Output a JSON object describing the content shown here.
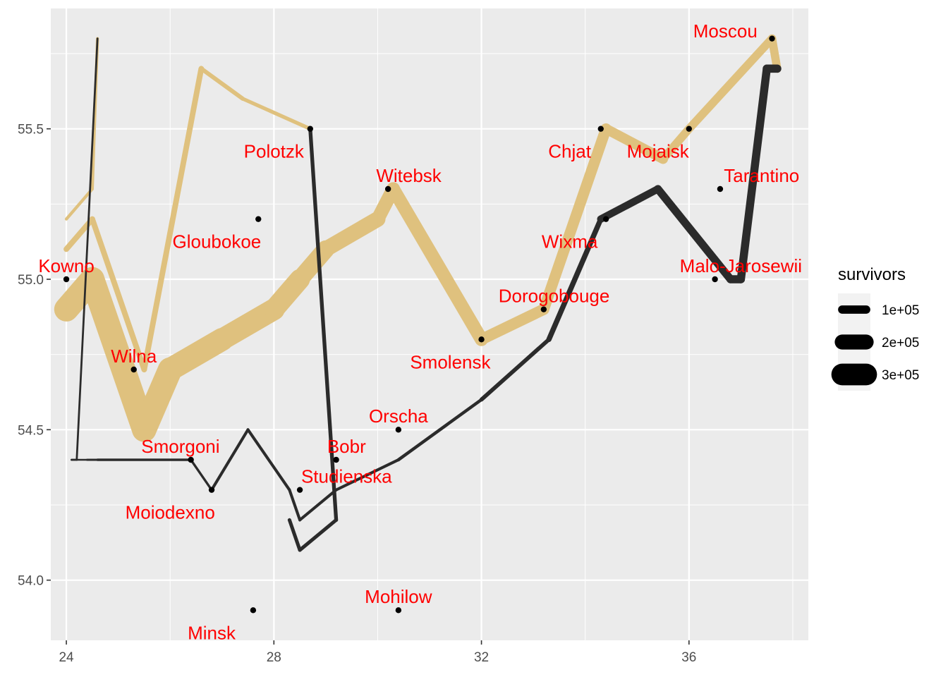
{
  "chart_data": {
    "type": "line",
    "title": "",
    "xlabel": "",
    "ylabel": "",
    "xlim": [
      23.7,
      38.3
    ],
    "ylim": [
      53.8,
      55.9
    ],
    "x_ticks": [
      24,
      28,
      32,
      36
    ],
    "y_ticks": [
      54.0,
      54.5,
      55.0,
      55.5
    ],
    "x_tick_labels": [
      "24",
      "28",
      "32",
      "36"
    ],
    "y_tick_labels": [
      "54.0",
      "54.5",
      "55.0",
      "55.5"
    ],
    "grid": true,
    "background": "#ebebeb",
    "colors": {
      "advance": "#dfc17e",
      "retreat": "#2b2b2b",
      "city_label": "#ff0000",
      "city_point": "#000000"
    },
    "legend": {
      "title": "survivors",
      "position": "right",
      "entries": [
        {
          "label": "1e+05",
          "value": 100000
        },
        {
          "label": "2e+05",
          "value": 200000
        },
        {
          "label": "3e+05",
          "value": 300000
        }
      ]
    },
    "troops": [
      {
        "group": 1,
        "direction": "A",
        "points": [
          {
            "x": 24.0,
            "y": 54.9,
            "survivors": 340000
          },
          {
            "x": 24.5,
            "y": 55.0,
            "survivors": 340000
          },
          {
            "x": 25.5,
            "y": 54.5,
            "survivors": 340000
          },
          {
            "x": 26.0,
            "y": 54.7,
            "survivors": 320000
          },
          {
            "x": 27.0,
            "y": 54.8,
            "survivors": 300000
          },
          {
            "x": 28.0,
            "y": 54.9,
            "survivors": 280000
          },
          {
            "x": 28.5,
            "y": 55.0,
            "survivors": 240000
          },
          {
            "x": 29.0,
            "y": 55.1,
            "survivors": 210000
          },
          {
            "x": 30.0,
            "y": 55.2,
            "survivors": 180000
          },
          {
            "x": 30.3,
            "y": 55.3,
            "survivors": 175000
          },
          {
            "x": 32.0,
            "y": 54.8,
            "survivors": 145000
          },
          {
            "x": 33.2,
            "y": 54.9,
            "survivors": 140000
          },
          {
            "x": 34.4,
            "y": 55.5,
            "survivors": 127100
          },
          {
            "x": 35.5,
            "y": 55.4,
            "survivors": 100000
          },
          {
            "x": 36.0,
            "y": 55.5,
            "survivors": 100000
          },
          {
            "x": 37.6,
            "y": 55.8,
            "survivors": 100000
          },
          {
            "x": 37.7,
            "y": 55.7,
            "survivors": 100000
          }
        ]
      },
      {
        "group": 1,
        "direction": "R",
        "points": [
          {
            "x": 37.7,
            "y": 55.7,
            "survivors": 100000
          },
          {
            "x": 37.5,
            "y": 55.7,
            "survivors": 98000
          },
          {
            "x": 37.0,
            "y": 55.0,
            "survivors": 97000
          },
          {
            "x": 36.8,
            "y": 55.0,
            "survivors": 96000
          },
          {
            "x": 35.4,
            "y": 55.3,
            "survivors": 87000
          },
          {
            "x": 34.3,
            "y": 55.2,
            "survivors": 55000
          },
          {
            "x": 33.3,
            "y": 54.8,
            "survivors": 37000
          },
          {
            "x": 32.0,
            "y": 54.6,
            "survivors": 24000
          },
          {
            "x": 30.4,
            "y": 54.4,
            "survivors": 20000
          },
          {
            "x": 29.2,
            "y": 54.3,
            "survivors": 20000
          },
          {
            "x": 28.5,
            "y": 54.2,
            "survivors": 20000
          },
          {
            "x": 28.3,
            "y": 54.3,
            "survivors": 20000
          },
          {
            "x": 27.5,
            "y": 54.5,
            "survivors": 20000
          },
          {
            "x": 26.8,
            "y": 54.3,
            "survivors": 12000
          },
          {
            "x": 26.4,
            "y": 54.4,
            "survivors": 14000
          },
          {
            "x": 24.6,
            "y": 54.4,
            "survivors": 8000
          },
          {
            "x": 24.4,
            "y": 54.4,
            "survivors": 4000
          },
          {
            "x": 24.2,
            "y": 54.4,
            "survivors": 4000
          },
          {
            "x": 24.1,
            "y": 54.4,
            "survivors": 4000
          }
        ]
      },
      {
        "group": 2,
        "direction": "A",
        "points": [
          {
            "x": 24.0,
            "y": 55.1,
            "survivors": 60000
          },
          {
            "x": 24.5,
            "y": 55.2,
            "survivors": 60000
          },
          {
            "x": 25.5,
            "y": 54.7,
            "survivors": 60000
          },
          {
            "x": 26.6,
            "y": 55.7,
            "survivors": 40000
          },
          {
            "x": 27.4,
            "y": 55.6,
            "survivors": 33000
          },
          {
            "x": 28.7,
            "y": 55.5,
            "survivors": 33000
          }
        ]
      },
      {
        "group": 2,
        "direction": "R",
        "points": [
          {
            "x": 28.7,
            "y": 55.5,
            "survivors": 33000
          },
          {
            "x": 29.2,
            "y": 54.2,
            "survivors": 30000
          },
          {
            "x": 28.5,
            "y": 54.1,
            "survivors": 30000
          },
          {
            "x": 28.3,
            "y": 54.2,
            "survivors": 28000
          }
        ]
      },
      {
        "group": 3,
        "direction": "A",
        "points": [
          {
            "x": 24.0,
            "y": 55.2,
            "survivors": 22000
          },
          {
            "x": 24.5,
            "y": 55.3,
            "survivors": 22000
          },
          {
            "x": 24.6,
            "y": 55.8,
            "survivors": 6000
          }
        ]
      },
      {
        "group": 3,
        "direction": "R",
        "points": [
          {
            "x": 24.6,
            "y": 55.8,
            "survivors": 6000
          },
          {
            "x": 24.2,
            "y": 54.4,
            "survivors": 6000
          },
          {
            "x": 24.1,
            "y": 54.4,
            "survivors": 6000
          }
        ]
      }
    ],
    "cities": [
      {
        "name": "Kowno",
        "lon": 24.0,
        "lat": 55.0,
        "lx": 24.0,
        "ly": 55.045
      },
      {
        "name": "Wilna",
        "lon": 25.3,
        "lat": 54.7,
        "lx": 25.3,
        "ly": 54.745
      },
      {
        "name": "Smorgoni",
        "lon": 26.4,
        "lat": 54.4,
        "lx": 26.2,
        "ly": 54.445
      },
      {
        "name": "Moiodexno",
        "lon": 26.8,
        "lat": 54.3,
        "lx": 26.0,
        "ly": 54.225
      },
      {
        "name": "Gloubokoe",
        "lon": 27.7,
        "lat": 55.2,
        "lx": 26.9,
        "ly": 55.125
      },
      {
        "name": "Minsk",
        "lon": 27.6,
        "lat": 53.9,
        "lx": 26.8,
        "ly": 53.825
      },
      {
        "name": "Studienska",
        "lon": 28.5,
        "lat": 54.3,
        "lx": 29.4,
        "ly": 54.345
      },
      {
        "name": "Polotzk",
        "lon": 28.7,
        "lat": 55.5,
        "lx": 28.0,
        "ly": 55.425
      },
      {
        "name": "Bobr",
        "lon": 29.2,
        "lat": 54.4,
        "lx": 29.4,
        "ly": 54.445
      },
      {
        "name": "Witebsk",
        "lon": 30.2,
        "lat": 55.3,
        "lx": 30.6,
        "ly": 55.345
      },
      {
        "name": "Orscha",
        "lon": 30.4,
        "lat": 54.5,
        "lx": 30.4,
        "ly": 54.545
      },
      {
        "name": "Mohilow",
        "lon": 30.4,
        "lat": 53.9,
        "lx": 30.4,
        "ly": 53.945
      },
      {
        "name": "Smolensk",
        "lon": 32.0,
        "lat": 54.8,
        "lx": 31.4,
        "ly": 54.725
      },
      {
        "name": "Dorogobouge",
        "lon": 33.2,
        "lat": 54.9,
        "lx": 33.4,
        "ly": 54.945
      },
      {
        "name": "Wixma",
        "lon": 34.4,
        "lat": 55.2,
        "lx": 33.7,
        "ly": 55.125
      },
      {
        "name": "Chjat",
        "lon": 34.3,
        "lat": 55.5,
        "lx": 33.7,
        "ly": 55.425
      },
      {
        "name": "Mojaisk",
        "lon": 36.0,
        "lat": 55.5,
        "lx": 35.4,
        "ly": 55.425
      },
      {
        "name": "Moscou",
        "lon": 37.6,
        "lat": 55.8,
        "lx": 36.7,
        "ly": 55.825
      },
      {
        "name": "Tarantino",
        "lon": 36.6,
        "lat": 55.3,
        "lx": 37.4,
        "ly": 55.345
      },
      {
        "name": "Malo-Jarosewii",
        "lon": 36.5,
        "lat": 55.0,
        "lx": 37.0,
        "ly": 55.045
      }
    ]
  }
}
